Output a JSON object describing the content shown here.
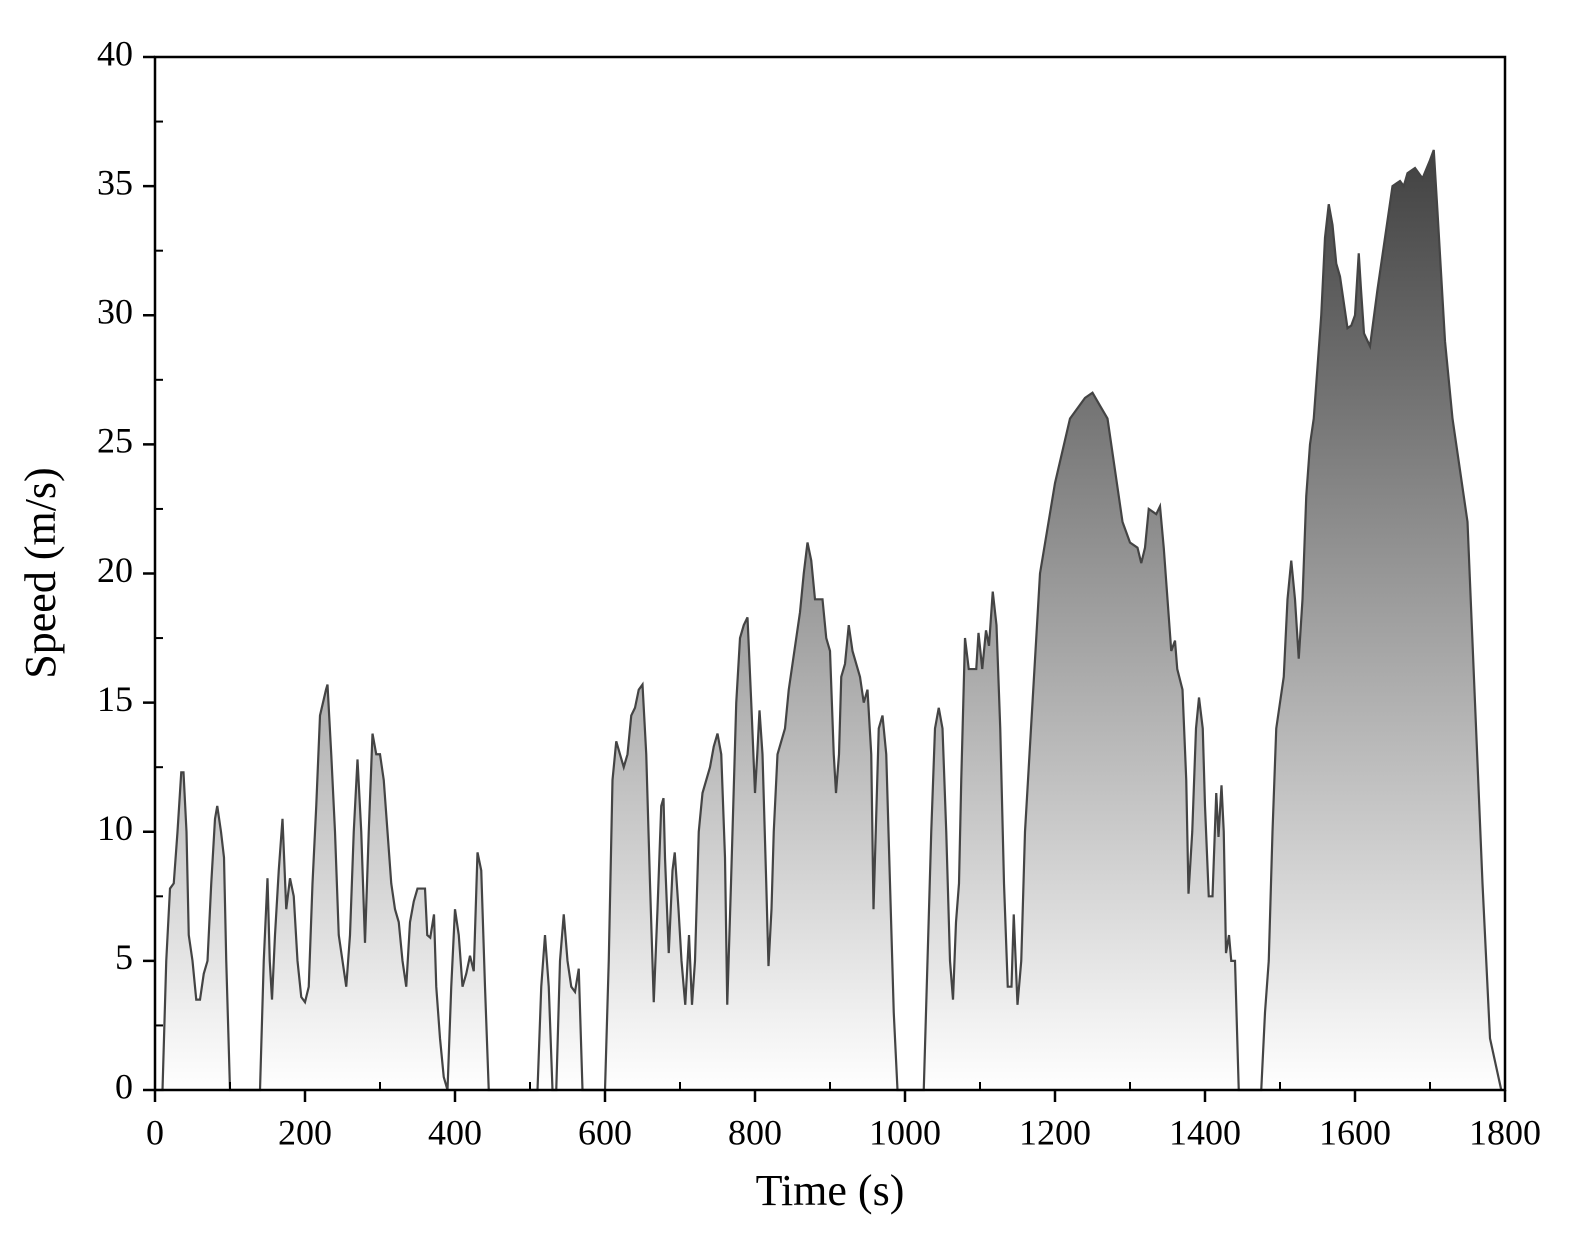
{
  "chart_data": {
    "type": "area",
    "xlabel": "Time (s)",
    "ylabel": "Speed (m/s)",
    "xlim": [
      0,
      1800
    ],
    "ylim": [
      0,
      40
    ],
    "xticks": [
      0,
      200,
      400,
      600,
      800,
      1000,
      1200,
      1400,
      1600,
      1800
    ],
    "yticks": [
      0,
      5,
      10,
      15,
      20,
      25,
      30,
      35,
      40
    ],
    "xminorticks": [
      100,
      300,
      500,
      700,
      900,
      1100,
      1300,
      1500,
      1700
    ],
    "yminorticks": [
      2.5,
      7.5,
      12.5,
      17.5,
      22.5,
      27.5,
      32.5,
      37.5
    ],
    "line_color": "#444444",
    "gradient": [
      "#ffffff",
      "#2e2e2e"
    ],
    "x": [
      0,
      10,
      15,
      20,
      25,
      30,
      35,
      38,
      42,
      45,
      50,
      55,
      60,
      65,
      70,
      75,
      80,
      83,
      88,
      92,
      95,
      100,
      140,
      145,
      150,
      153,
      156,
      160,
      165,
      170,
      175,
      180,
      185,
      190,
      195,
      200,
      205,
      210,
      215,
      220,
      228,
      230,
      235,
      240,
      245,
      250,
      255,
      260,
      265,
      270,
      275,
      280,
      285,
      290,
      295,
      300,
      305,
      310,
      315,
      320,
      325,
      330,
      335,
      340,
      345,
      350,
      360,
      363,
      367,
      372,
      375,
      380,
      385,
      390,
      395,
      400,
      405,
      410,
      415,
      420,
      425,
      430,
      435,
      440,
      445,
      510,
      515,
      520,
      525,
      530,
      535,
      540,
      545,
      550,
      555,
      560,
      565,
      570,
      600,
      605,
      610,
      615,
      620,
      625,
      630,
      635,
      640,
      645,
      650,
      655,
      660,
      665,
      670,
      675,
      678,
      680,
      685,
      690,
      693,
      698,
      702,
      707,
      712,
      716,
      720,
      725,
      730,
      740,
      745,
      750,
      755,
      760,
      763,
      768,
      775,
      780,
      785,
      790,
      795,
      800,
      803,
      806,
      810,
      815,
      818,
      822,
      825,
      830,
      840,
      845,
      850,
      855,
      860,
      865,
      870,
      875,
      880,
      890,
      895,
      900,
      905,
      908,
      912,
      915,
      920,
      925,
      930,
      940,
      945,
      950,
      955,
      958,
      962,
      965,
      970,
      975,
      980,
      985,
      990,
      1025,
      1030,
      1035,
      1040,
      1045,
      1050,
      1055,
      1060,
      1064,
      1068,
      1072,
      1075,
      1080,
      1085,
      1095,
      1098,
      1103,
      1108,
      1112,
      1117,
      1122,
      1127,
      1132,
      1137,
      1142,
      1145,
      1150,
      1155,
      1160,
      1170,
      1180,
      1200,
      1220,
      1240,
      1250,
      1260,
      1270,
      1280,
      1290,
      1300,
      1310,
      1315,
      1320,
      1325,
      1335,
      1340,
      1345,
      1350,
      1355,
      1360,
      1363,
      1370,
      1375,
      1378,
      1383,
      1388,
      1392,
      1397,
      1400,
      1405,
      1410,
      1415,
      1418,
      1422,
      1425,
      1428,
      1432,
      1435,
      1440,
      1445,
      1475,
      1480,
      1485,
      1490,
      1495,
      1500,
      1505,
      1510,
      1515,
      1520,
      1525,
      1530,
      1535,
      1540,
      1545,
      1550,
      1555,
      1560,
      1565,
      1570,
      1575,
      1580,
      1585,
      1590,
      1595,
      1600,
      1605,
      1608,
      1612,
      1620,
      1630,
      1640,
      1650,
      1660,
      1665,
      1670,
      1680,
      1690,
      1700,
      1705,
      1710,
      1720,
      1730,
      1740,
      1750,
      1760,
      1770,
      1780,
      1795
    ],
    "values": [
      0,
      0,
      5,
      7.8,
      8,
      10,
      12.3,
      12.3,
      10,
      6,
      5,
      3.5,
      3.5,
      4.5,
      5,
      8,
      10.5,
      11,
      10,
      9,
      5,
      0,
      0,
      5,
      8.2,
      5,
      3.5,
      6,
      8.5,
      10.5,
      7,
      8.2,
      7.5,
      5,
      3.6,
      3.4,
      4,
      8,
      11,
      14.5,
      15.5,
      15.7,
      13,
      10,
      6,
      5,
      4,
      6,
      10,
      12.8,
      10,
      5.7,
      10,
      13.8,
      13,
      13,
      12,
      10,
      8,
      7,
      6.5,
      5,
      4,
      6.5,
      7.3,
      7.8,
      7.8,
      6,
      5.9,
      6.8,
      4,
      2,
      0.5,
      0,
      4,
      7,
      6,
      4,
      4.5,
      5.2,
      4.6,
      9.2,
      8.5,
      4,
      0,
      0,
      4,
      6,
      4,
      0,
      0,
      5,
      6.8,
      5,
      4,
      3.8,
      4.7,
      0,
      0,
      5,
      12,
      13.5,
      13,
      12.5,
      13,
      14.5,
      14.8,
      15.5,
      15.7,
      13,
      8,
      3.4,
      7,
      11,
      11.3,
      9,
      5.3,
      8.5,
      9.2,
      7,
      5,
      3.3,
      6,
      3.3,
      5,
      10,
      11.5,
      12.5,
      13.3,
      13.8,
      13,
      9,
      3.3,
      8,
      15,
      17.5,
      18,
      18.3,
      15,
      11.5,
      13,
      14.7,
      13,
      8,
      4.8,
      7,
      10,
      13,
      14,
      15.5,
      16.5,
      17.5,
      18.5,
      20,
      21.2,
      20.5,
      19,
      19,
      17.5,
      17,
      13,
      11.5,
      13,
      16,
      16.5,
      18,
      17,
      16,
      15,
      15.5,
      13,
      7,
      11,
      14,
      14.5,
      13,
      8,
      3,
      0,
      0,
      5,
      10,
      14,
      14.8,
      14,
      10,
      5,
      3.5,
      6.5,
      8,
      12,
      17.5,
      16.3,
      16.3,
      17.7,
      16.3,
      17.8,
      17.2,
      19.3,
      18,
      14,
      8,
      4,
      4,
      6.8,
      3.3,
      5,
      10,
      15,
      20,
      23.5,
      26,
      26.8,
      27,
      26.5,
      26,
      24,
      22,
      21.2,
      21,
      20.4,
      21,
      22.5,
      22.3,
      22.6,
      21,
      19,
      17,
      17.4,
      16.3,
      15.5,
      12,
      7.6,
      10,
      14,
      15.2,
      14,
      11,
      7.5,
      7.5,
      11.5,
      9.8,
      11.8,
      10,
      5.3,
      6,
      5,
      5,
      0,
      0,
      3,
      5,
      10,
      14,
      15,
      16,
      19,
      20.5,
      19,
      16.7,
      19,
      23,
      25,
      26,
      28,
      30,
      33,
      34.3,
      33.5,
      32,
      31.5,
      30.5,
      29.5,
      29.6,
      30,
      32.4,
      31,
      29.3,
      28.8,
      31,
      33,
      35,
      35.2,
      35,
      35.5,
      35.7,
      35.3,
      36,
      36.4,
      34,
      29,
      26,
      24,
      22,
      15,
      8,
      2,
      0
    ]
  }
}
